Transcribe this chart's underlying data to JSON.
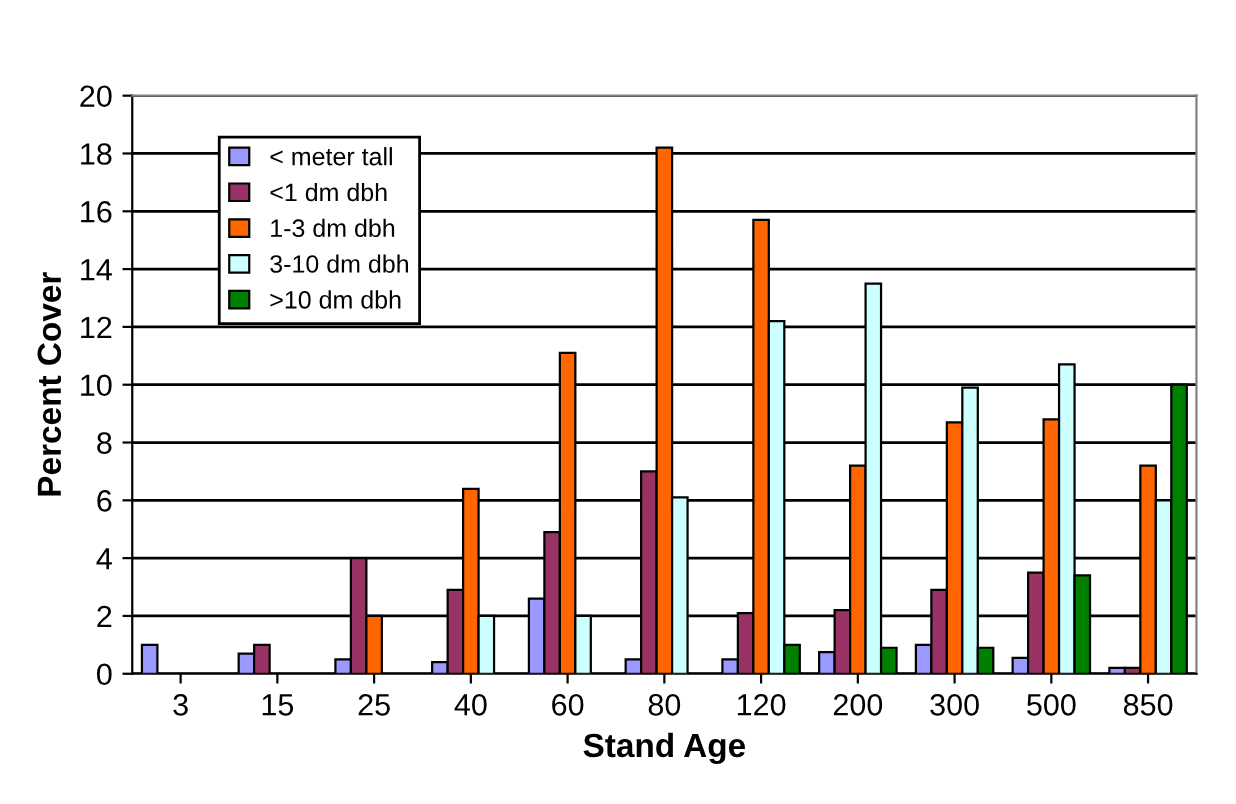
{
  "chart_data": {
    "type": "bar",
    "xlabel": "Stand Age",
    "ylabel": "Percent Cover",
    "categories": [
      "3",
      "15",
      "25",
      "40",
      "60",
      "80",
      "120",
      "200",
      "300",
      "500",
      "850"
    ],
    "series": [
      {
        "name": "< meter tall",
        "color": "#9999ff",
        "values": [
          1.0,
          0.7,
          0.5,
          0.4,
          2.6,
          0.5,
          0.5,
          0.75,
          1.0,
          0.55,
          0.2
        ]
      },
      {
        "name": "<1 dm dbh",
        "color": "#993366",
        "values": [
          null,
          1.0,
          4.0,
          2.9,
          4.9,
          7.0,
          2.1,
          2.2,
          2.9,
          3.5,
          0.2
        ]
      },
      {
        "name": "1-3 dm dbh",
        "color": "#ff6600",
        "values": [
          null,
          null,
          2.0,
          6.4,
          11.1,
          18.2,
          15.7,
          7.2,
          8.7,
          8.8,
          7.2
        ]
      },
      {
        "name": "3-10 dm dbh",
        "color": "#ccffff",
        "values": [
          null,
          null,
          null,
          2.0,
          2.0,
          6.1,
          12.2,
          13.5,
          9.9,
          10.7,
          6.0
        ]
      },
      {
        "name": ">10 dm dbh",
        "color": "#008000",
        "values": [
          null,
          null,
          null,
          null,
          null,
          null,
          1.0,
          0.9,
          0.9,
          3.4,
          10.0
        ]
      }
    ],
    "ylim": [
      0,
      20
    ],
    "yticks": [
      0,
      2,
      4,
      6,
      8,
      10,
      12,
      14,
      16,
      18,
      20
    ],
    "grid": "y",
    "legend": "top left"
  }
}
